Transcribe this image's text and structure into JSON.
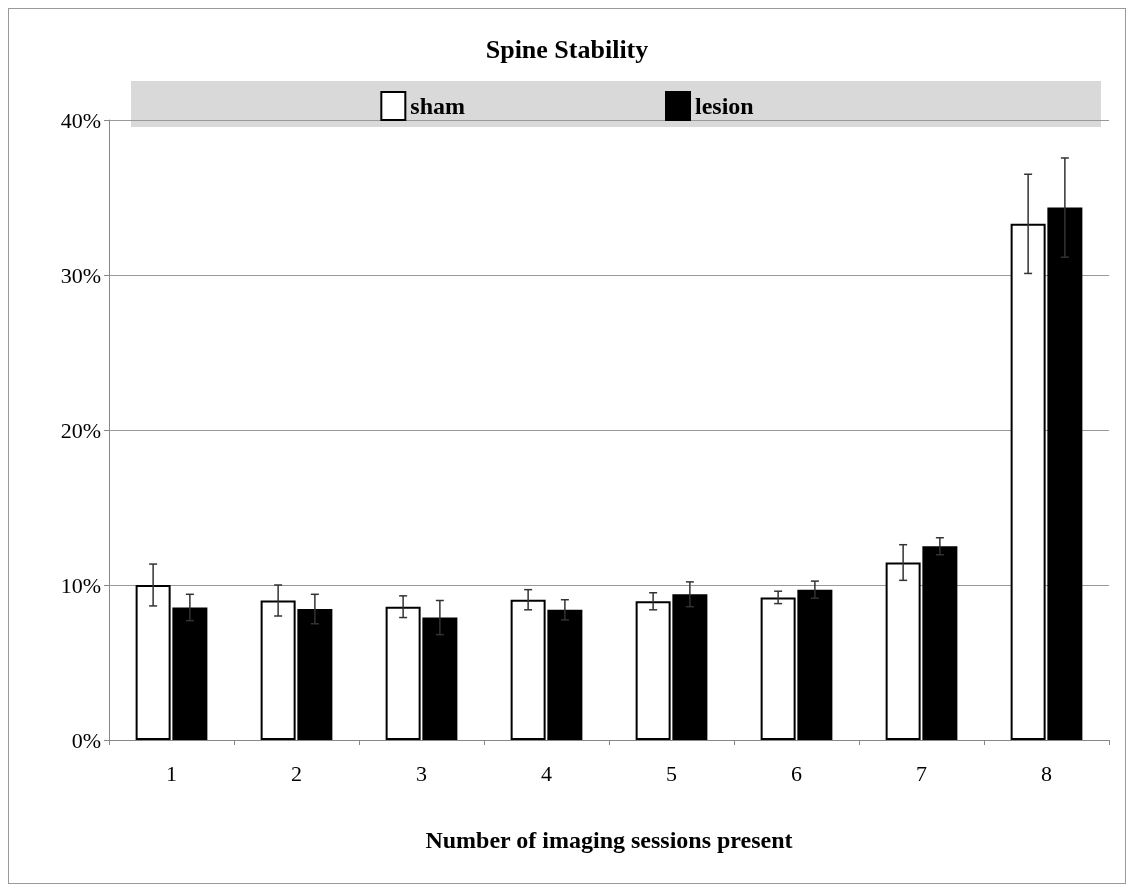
{
  "chart_data": {
    "type": "bar",
    "title": "Spine Stability",
    "xlabel": "Number of imaging sessions present",
    "categories": [
      "1",
      "2",
      "3",
      "4",
      "5",
      "6",
      "7",
      "8"
    ],
    "series": [
      {
        "name": "sham",
        "color": "#ffffff",
        "values": [
          10.0,
          9.0,
          8.6,
          9.05,
          8.95,
          9.2,
          11.45,
          33.3
        ],
        "errors": [
          1.35,
          1.0,
          0.7,
          0.65,
          0.55,
          0.4,
          1.15,
          3.2
        ]
      },
      {
        "name": "lesion",
        "color": "#000000",
        "values": [
          8.55,
          8.45,
          7.9,
          8.4,
          9.4,
          9.7,
          12.5,
          34.35
        ],
        "errors": [
          0.85,
          0.95,
          1.1,
          0.65,
          0.8,
          0.55,
          0.55,
          3.2
        ]
      }
    ],
    "ylim": [
      0,
      40
    ],
    "yticks": [
      {
        "value": 0,
        "label": "0%"
      },
      {
        "value": 10,
        "label": "10%"
      },
      {
        "value": 20,
        "label": "20%"
      },
      {
        "value": 30,
        "label": "30%"
      },
      {
        "value": 40,
        "label": "40%"
      }
    ],
    "grid": "y",
    "legend": "top"
  }
}
